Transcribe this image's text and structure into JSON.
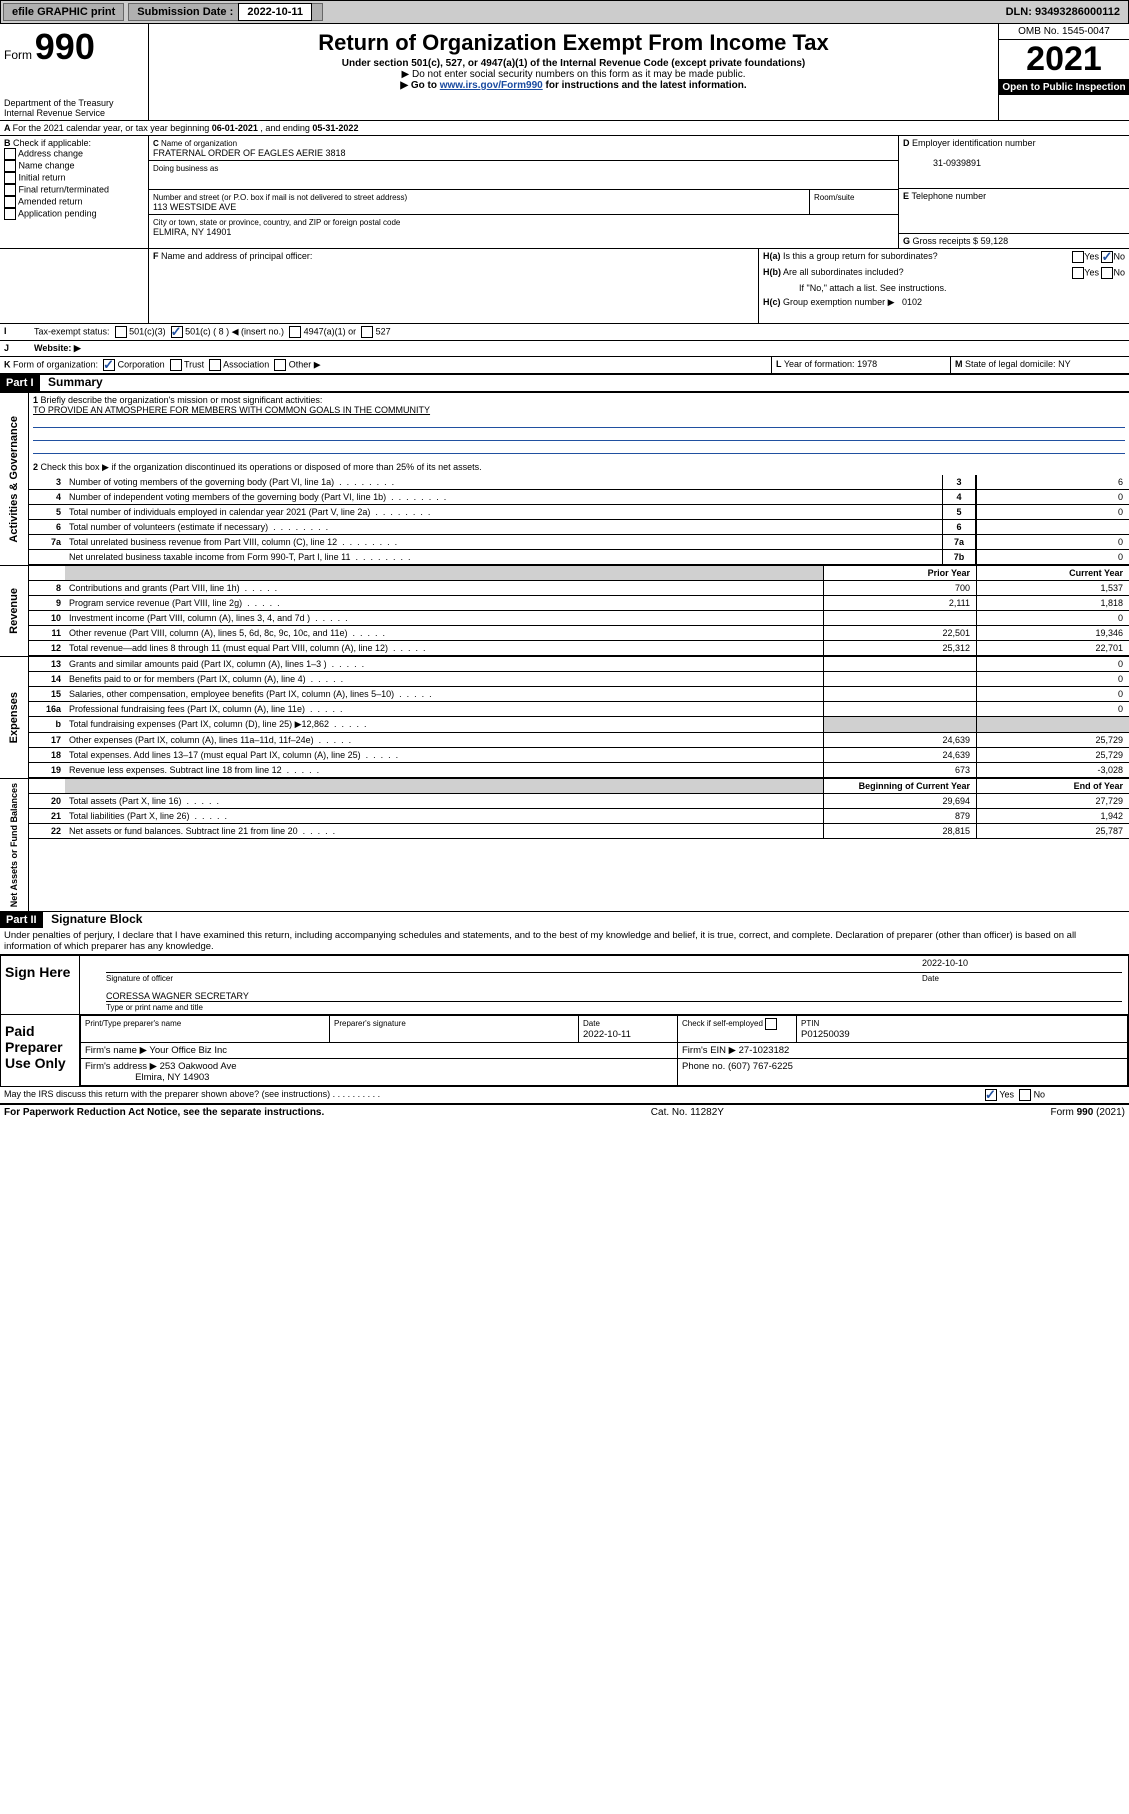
{
  "topbar": {
    "efile": "efile GRAPHIC print",
    "sub_label": "Submission Date :",
    "sub_date": "2022-10-11",
    "dln_label": "DLN:",
    "dln": "93493286000112"
  },
  "header": {
    "form_small": "Form",
    "form_big": "990",
    "dept": "Department of the Treasury\nInternal Revenue Service",
    "title": "Return of Organization Exempt From Income Tax",
    "under": "Under section 501(c), 527, or 4947(a)(1) of the Internal Revenue Code (except private foundations)",
    "line1": "▶ Do not enter social security numbers on this form as it may be made public.",
    "line2_pre": "▶ Go to ",
    "line2_link": "www.irs.gov/Form990",
    "line2_post": " for instructions and the latest information.",
    "omb": "OMB No. 1545-0047",
    "year": "2021",
    "inspect": "Open to Public Inspection"
  },
  "A": {
    "text_pre": "For the 2021 calendar year, or tax year beginning ",
    "begin": "06-01-2021",
    "mid": " , and ending ",
    "end": "05-31-2022"
  },
  "B": {
    "label": "Check if applicable:",
    "items": [
      "Address change",
      "Name change",
      "Initial return",
      "Final return/terminated",
      "Amended return",
      "Application pending"
    ]
  },
  "C": {
    "name_lbl": "Name of organization",
    "name": "FRATERNAL ORDER OF EAGLES AERIE 3818",
    "dba_lbl": "Doing business as",
    "addr_lbl": "Number and street (or P.O. box if mail is not delivered to street address)",
    "room_lbl": "Room/suite",
    "addr": "113 WESTSIDE AVE",
    "city_lbl": "City or town, state or province, country, and ZIP or foreign postal code",
    "city": "ELMIRA, NY  14901"
  },
  "D": {
    "label": "Employer identification number",
    "value": "31-0939891"
  },
  "E": {
    "label": "Telephone number",
    "value": ""
  },
  "G": {
    "label": "Gross receipts $",
    "value": "59,128"
  },
  "F": {
    "label": "Name and address of principal officer:"
  },
  "H": {
    "a": "Is this a group return for subordinates?",
    "b": "Are all subordinates included?",
    "b_note": "If \"No,\" attach a list. See instructions.",
    "c": "Group exemption number ▶",
    "c_val": "0102",
    "yes": "Yes",
    "no": "No"
  },
  "I": {
    "label": "Tax-exempt status:",
    "opts": [
      "501(c)(3)",
      "501(c) ( 8 ) ◀ (insert no.)",
      "4947(a)(1) or",
      "527"
    ]
  },
  "J": {
    "label": "Website: ▶"
  },
  "K": {
    "label": "Form of organization:",
    "opts": [
      "Corporation",
      "Trust",
      "Association",
      "Other ▶"
    ]
  },
  "L": {
    "label": "Year of formation:",
    "value": "1978"
  },
  "M": {
    "label": "State of legal domicile:",
    "value": "NY"
  },
  "part1": {
    "hdr": "Part I",
    "title": "Summary",
    "q1": "Briefly describe the organization's mission or most significant activities:",
    "mission": "TO PROVIDE AN ATMOSPHERE FOR MEMBERS WITH COMMON GOALS IN THE COMMUNITY",
    "q2": "Check this box ▶  if the organization discontinued its operations or disposed of more than 25% of its net assets.",
    "lines_gov": [
      {
        "n": "3",
        "d": "Number of voting members of the governing body (Part VI, line 1a)",
        "box": "3",
        "v": "6"
      },
      {
        "n": "4",
        "d": "Number of independent voting members of the governing body (Part VI, line 1b)",
        "box": "4",
        "v": "0"
      },
      {
        "n": "5",
        "d": "Total number of individuals employed in calendar year 2021 (Part V, line 2a)",
        "box": "5",
        "v": "0"
      },
      {
        "n": "6",
        "d": "Total number of volunteers (estimate if necessary)",
        "box": "6",
        "v": ""
      },
      {
        "n": "7a",
        "d": "Total unrelated business revenue from Part VIII, column (C), line 12",
        "box": "7a",
        "v": "0"
      },
      {
        "n": "",
        "d": "Net unrelated business taxable income from Form 990-T, Part I, line 11",
        "box": "7b",
        "v": "0"
      }
    ],
    "col_prior": "Prior Year",
    "col_curr": "Current Year",
    "rev": [
      {
        "n": "8",
        "d": "Contributions and grants (Part VIII, line 1h)",
        "p": "700",
        "c": "1,537"
      },
      {
        "n": "9",
        "d": "Program service revenue (Part VIII, line 2g)",
        "p": "2,111",
        "c": "1,818"
      },
      {
        "n": "10",
        "d": "Investment income (Part VIII, column (A), lines 3, 4, and 7d )",
        "p": "",
        "c": "0"
      },
      {
        "n": "11",
        "d": "Other revenue (Part VIII, column (A), lines 5, 6d, 8c, 9c, 10c, and 11e)",
        "p": "22,501",
        "c": "19,346"
      },
      {
        "n": "12",
        "d": "Total revenue—add lines 8 through 11 (must equal Part VIII, column (A), line 12)",
        "p": "25,312",
        "c": "22,701"
      }
    ],
    "exp": [
      {
        "n": "13",
        "d": "Grants and similar amounts paid (Part IX, column (A), lines 1–3 )",
        "p": "",
        "c": "0"
      },
      {
        "n": "14",
        "d": "Benefits paid to or for members (Part IX, column (A), line 4)",
        "p": "",
        "c": "0"
      },
      {
        "n": "15",
        "d": "Salaries, other compensation, employee benefits (Part IX, column (A), lines 5–10)",
        "p": "",
        "c": "0"
      },
      {
        "n": "16a",
        "d": "Professional fundraising fees (Part IX, column (A), line 11e)",
        "p": "",
        "c": "0"
      },
      {
        "n": "b",
        "d": "Total fundraising expenses (Part IX, column (D), line 25) ▶12,862",
        "p": "shade",
        "c": "shade"
      },
      {
        "n": "17",
        "d": "Other expenses (Part IX, column (A), lines 11a–11d, 11f–24e)",
        "p": "24,639",
        "c": "25,729"
      },
      {
        "n": "18",
        "d": "Total expenses. Add lines 13–17 (must equal Part IX, column (A), line 25)",
        "p": "24,639",
        "c": "25,729"
      },
      {
        "n": "19",
        "d": "Revenue less expenses. Subtract line 18 from line 12",
        "p": "673",
        "c": "-3,028"
      }
    ],
    "col_begin": "Beginning of Current Year",
    "col_end": "End of Year",
    "net": [
      {
        "n": "20",
        "d": "Total assets (Part X, line 16)",
        "p": "29,694",
        "c": "27,729"
      },
      {
        "n": "21",
        "d": "Total liabilities (Part X, line 26)",
        "p": "879",
        "c": "1,942"
      },
      {
        "n": "22",
        "d": "Net assets or fund balances. Subtract line 21 from line 20",
        "p": "28,815",
        "c": "25,787"
      }
    ],
    "sec_gov": "Activities & Governance",
    "sec_rev": "Revenue",
    "sec_exp": "Expenses",
    "sec_net": "Net Assets or Fund Balances"
  },
  "part2": {
    "hdr": "Part II",
    "title": "Signature Block",
    "decl": "Under penalties of perjury, I declare that I have examined this return, including accompanying schedules and statements, and to the best of my knowledge and belief, it is true, correct, and complete. Declaration of preparer (other than officer) is based on all information of which preparer has any knowledge.",
    "sign_here": "Sign Here",
    "sig_officer": "Signature of officer",
    "sig_date_lbl": "Date",
    "sig_date": "2022-10-10",
    "typed": "CORESSA WAGNER SECRETARY",
    "typed_lbl": "Type or print name and title",
    "paid": "Paid Preparer Use Only",
    "pt_name_lbl": "Print/Type preparer's name",
    "pt_sig_lbl": "Preparer's signature",
    "pt_date_lbl": "Date",
    "pt_date": "2022-10-11",
    "pt_check": "Check  if self-employed",
    "ptin_lbl": "PTIN",
    "ptin": "P01250039",
    "firm_name_lbl": "Firm's name    ▶",
    "firm_name": "Your Office Biz Inc",
    "firm_ein_lbl": "Firm's EIN ▶",
    "firm_ein": "27-1023182",
    "firm_addr_lbl": "Firm's address ▶",
    "firm_addr1": "253 Oakwood Ave",
    "firm_addr2": "Elmira, NY  14903",
    "phone_lbl": "Phone no.",
    "phone": "(607) 767-6225",
    "discuss": "May the IRS discuss this return with the preparer shown above? (see instructions)",
    "yes": "Yes",
    "no": "No"
  },
  "footer": {
    "left": "For Paperwork Reduction Act Notice, see the separate instructions.",
    "mid": "Cat. No. 11282Y",
    "right": "Form 990 (2021)"
  },
  "colors": {
    "link": "#1a4ba0",
    "rule": "#2050a0",
    "shade": "#d0d0d0"
  }
}
